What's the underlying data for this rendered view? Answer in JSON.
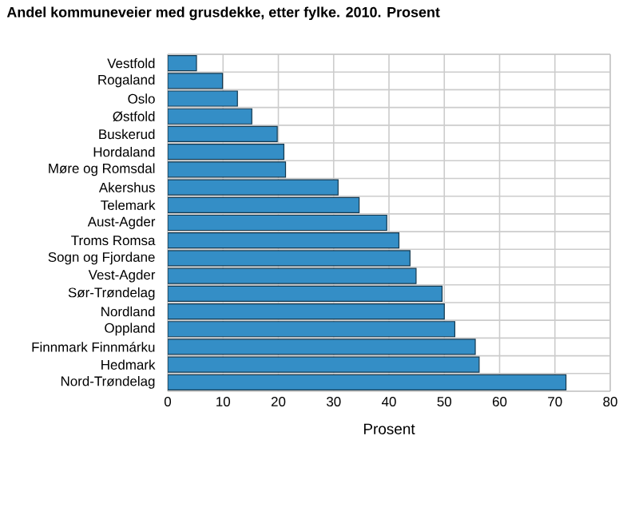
{
  "chart_data": {
    "type": "bar",
    "orientation": "horizontal",
    "title": "Andel kommuneveier med grusdekke, etter fylke. 2010. Prosent",
    "xlabel": "Prosent",
    "categories": [
      "Vestfold",
      "Rogaland",
      "Oslo",
      "Østfold",
      "Buskerud",
      "Hordaland",
      "Møre og Romsdal",
      "Akershus",
      "Telemark",
      "Aust-Agder",
      "Troms Romsa",
      "Sogn og Fjordane",
      "Vest-Agder",
      "Sør-Trøndelag",
      "Nordland",
      "Oppland",
      "Finnmark Finnmárku",
      "Hedmark",
      "Nord-Trøndelag"
    ],
    "values": [
      5.2,
      9.9,
      12.6,
      15.2,
      19.8,
      21.0,
      21.3,
      30.8,
      34.6,
      39.6,
      41.8,
      43.8,
      44.9,
      49.6,
      50.0,
      51.9,
      55.6,
      56.3,
      72.0
    ],
    "color": "#348ec6",
    "xlim": [
      0,
      80
    ],
    "xticks": [
      0,
      10,
      20,
      30,
      40,
      50,
      60,
      70,
      80
    ],
    "grid": true
  }
}
